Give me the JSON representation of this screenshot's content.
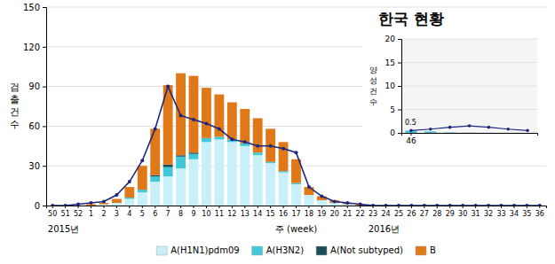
{
  "chart_data": [
    {
      "type": "bar",
      "stacked": true,
      "title": "한국 현황",
      "y_label": "검\n출\n건\n수",
      "x_label": "주 (week)",
      "annotations": [
        {
          "text": "2015년",
          "category": "50"
        },
        {
          "text": "2016년",
          "category": "23"
        }
      ],
      "categories": [
        "50",
        "51",
        "52",
        "1",
        "2",
        "3",
        "4",
        "5",
        "6",
        "7",
        "8",
        "9",
        "10",
        "11",
        "12",
        "13",
        "14",
        "15",
        "16",
        "17",
        "18",
        "19",
        "20",
        "21",
        "22",
        "23",
        "24",
        "25",
        "26",
        "27",
        "28",
        "29",
        "30",
        "31",
        "32",
        "33",
        "34",
        "35",
        "36"
      ],
      "series": [
        {
          "name": "A(H1N1)pdm09",
          "color": "#c8f0f8",
          "values": [
            0,
            0,
            0,
            0,
            1,
            2,
            5,
            10,
            18,
            22,
            28,
            35,
            48,
            50,
            48,
            45,
            38,
            32,
            25,
            16,
            8,
            4,
            2,
            1,
            0,
            0,
            0,
            0,
            0,
            0,
            0,
            0,
            0,
            0,
            0,
            0,
            0,
            0,
            0
          ]
        },
        {
          "name": "A(H3N2)",
          "color": "#40c8d8",
          "values": [
            0,
            0,
            0,
            0,
            0,
            0,
            1,
            2,
            4,
            7,
            9,
            4,
            3,
            2,
            2,
            2,
            2,
            1,
            1,
            1,
            0,
            0,
            0,
            0,
            0,
            0,
            0,
            0,
            0,
            0,
            0,
            0,
            0,
            0,
            0,
            0,
            0,
            0,
            0
          ]
        },
        {
          "name": "A(Not subtyped)",
          "color": "#1a4f5a",
          "values": [
            0,
            0,
            0,
            0,
            0,
            0,
            0,
            0,
            1,
            2,
            1,
            1,
            0,
            0,
            0,
            0,
            0,
            0,
            0,
            0,
            0,
            0,
            0,
            0,
            0,
            0,
            0,
            0,
            0,
            0,
            0,
            0,
            0,
            0,
            0,
            0,
            0,
            0,
            0
          ]
        },
        {
          "name": "B",
          "color": "#e07818",
          "values": [
            0,
            0,
            0,
            1,
            1,
            3,
            8,
            18,
            35,
            60,
            62,
            58,
            38,
            32,
            28,
            26,
            26,
            25,
            22,
            18,
            6,
            3,
            2,
            1,
            1,
            0,
            0,
            0,
            0,
            0,
            0,
            0,
            0,
            0,
            0,
            0,
            0,
            0,
            0
          ]
        },
        {
          "type": "line",
          "color": "#1c2880",
          "marker": "circle",
          "values": [
            0,
            0,
            1,
            2,
            3,
            8,
            18,
            34,
            58,
            90,
            68,
            65,
            62,
            58,
            50,
            48,
            45,
            45,
            43,
            40,
            14,
            7,
            3,
            2,
            1,
            0,
            0,
            0,
            0,
            0,
            0,
            0,
            0,
            0,
            0,
            0,
            0,
            0,
            0
          ]
        }
      ],
      "ylim": [
        0,
        150
      ],
      "yticks": [
        0,
        30,
        60,
        90,
        120,
        150
      ],
      "grid": true,
      "legend": "bottom"
    },
    {
      "type": "bar",
      "y_label": "양\n성\n건\n수",
      "annotations": [
        "0.5"
      ],
      "categories": [
        "46",
        null,
        null,
        null,
        null,
        null,
        null
      ],
      "series": [
        {
          "color": "#40c8d8",
          "values": [
            0.5,
            0.3,
            0.1,
            0.05,
            0,
            0,
            0
          ]
        },
        {
          "type": "line",
          "color": "#1c2880",
          "marker": "circle",
          "values": [
            0.5,
            0.8,
            1.2,
            1.5,
            1.2,
            0.8,
            0.5
          ]
        }
      ],
      "ylim": [
        0,
        20
      ],
      "yticks": [
        0,
        5,
        10,
        15,
        20
      ],
      "grid": true
    }
  ]
}
